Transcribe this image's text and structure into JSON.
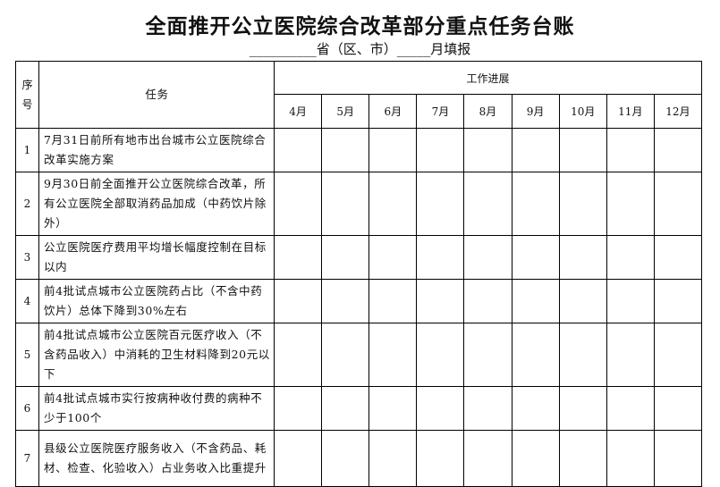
{
  "title": "全面推开公立医院综合改革部分重点任务台账",
  "subtitle": "__________省（区、市）_____月填报",
  "table": {
    "header_seq": "序号",
    "header_task": "任务",
    "header_progress": "工作进展",
    "months": [
      "4月",
      "5月",
      "6月",
      "7月",
      "8月",
      "9月",
      "10月",
      "11月",
      "12月"
    ],
    "rows": [
      {
        "no": "1",
        "task": "7月31日前所有地市出台城市公立医院综合改革实施方案"
      },
      {
        "no": "2",
        "task": "9月30日前全面推开公立医院综合改革，所有公立医院全部取消药品加成（中药饮片除外）"
      },
      {
        "no": "3",
        "task": "公立医院医疗费用平均增长幅度控制在目标以内"
      },
      {
        "no": "4",
        "task": "前4批试点城市公立医院药占比（不含中药饮片）总体下降到30%左右"
      },
      {
        "no": "5",
        "task": "前4批试点城市公立医院百元医疗收入（不含药品收入）中消耗的卫生材料降到20元以下"
      },
      {
        "no": "6",
        "task": "前4批试点城市实行按病种收付费的病种不少于100个"
      },
      {
        "no": "7",
        "task": "县级公立医院医疗服务收入（不含药品、耗材、检查、化验收入）占业务收入比重提升"
      }
    ]
  }
}
